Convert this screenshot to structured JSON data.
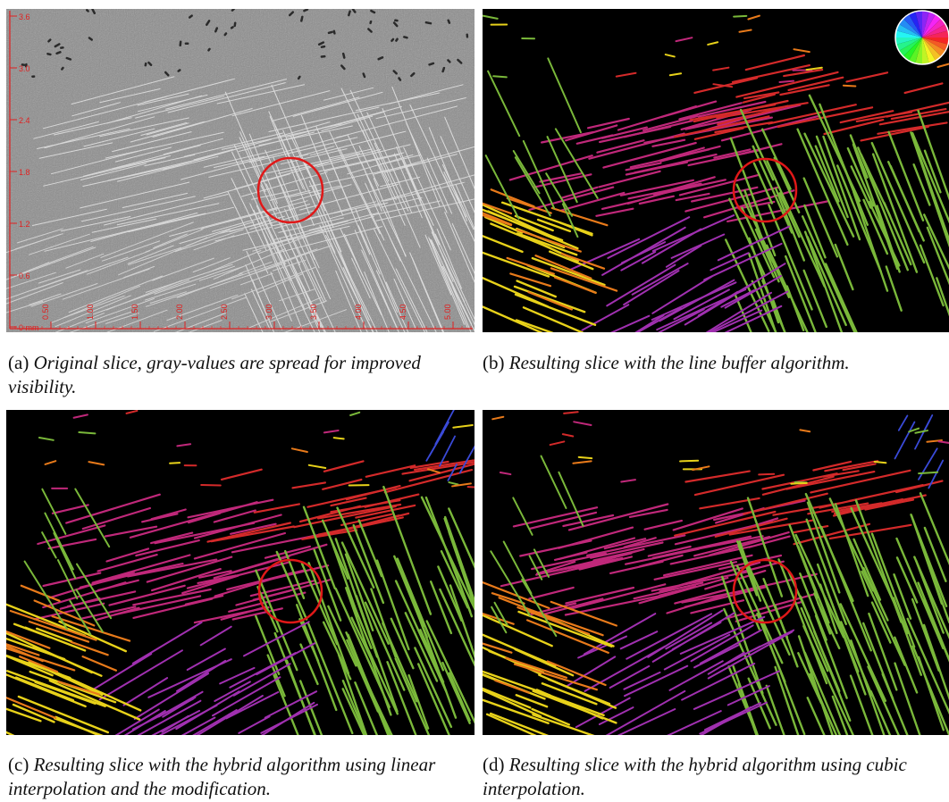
{
  "panels": {
    "a": {
      "label": "(a)",
      "caption": "Original slice, gray-values are spread for improved visibility.",
      "y_ticks": [
        "3.6",
        "3.0",
        "2.4",
        "1.8",
        "1.2",
        "0.6",
        "0 mm"
      ],
      "x_ticks": [
        "0.50",
        "1.00",
        "1.50",
        "2.00",
        "2.50",
        "3.00",
        "3.50",
        "4.00",
        "4.50",
        "5.00"
      ]
    },
    "b": {
      "label": "(b)",
      "caption": "Resulting slice with the line buffer algorithm."
    },
    "c": {
      "label": "(c)",
      "caption": "Resulting slice with the hybrid algorithm using linear interpolation and the modification."
    },
    "d": {
      "label": "(d)",
      "caption": "Resulting slice with the hybrid algorithm using cubic interpolation."
    }
  },
  "colors": {
    "marker_circle": "#e01818",
    "scale_bar": "#e02020",
    "background_dark": "#000000",
    "gray_slice": "#8c8c8c",
    "fiber_magenta": "#c0287a",
    "fiber_red": "#d42a2a",
    "fiber_green": "#7ab83a",
    "fiber_yellow": "#e8d21a",
    "fiber_orange": "#e87a1a",
    "fiber_purple": "#a030b0",
    "fiber_blue": "#3a4ad8"
  }
}
